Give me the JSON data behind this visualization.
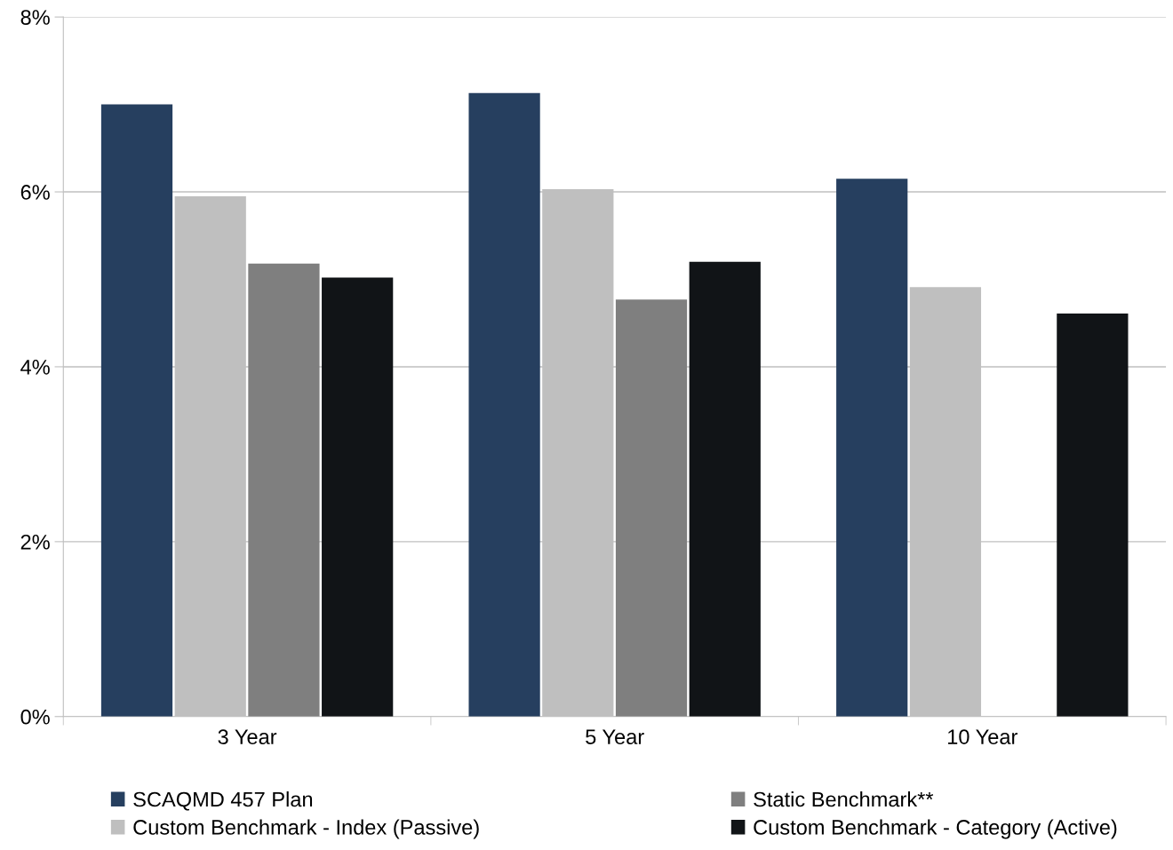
{
  "chart_data": {
    "type": "bar",
    "categories": [
      "3 Year",
      "5 Year",
      "10 Year"
    ],
    "series": [
      {
        "name": "SCAQMD 457 Plan",
        "color": "#263f5f",
        "values": [
          7.0,
          7.13,
          6.15
        ]
      },
      {
        "name": "Custom Benchmark - Index (Passive)",
        "color": "#bfbfbf",
        "values": [
          5.95,
          6.03,
          4.91
        ]
      },
      {
        "name": "Static Benchmark**",
        "color": "#7f7f7f",
        "values": [
          5.18,
          4.77,
          null
        ]
      },
      {
        "name": "Custom Benchmark - Category (Active)",
        "color": "#111417",
        "values": [
          5.02,
          5.2,
          4.61
        ]
      }
    ],
    "ylim": [
      0,
      8
    ],
    "yticks": [
      {
        "value": 0,
        "label": "0%"
      },
      {
        "value": 2,
        "label": "2%"
      },
      {
        "value": 4,
        "label": "4%"
      },
      {
        "value": 6,
        "label": "6%"
      },
      {
        "value": 8,
        "label": "8%"
      }
    ],
    "grid": "y",
    "legend": "bottom"
  }
}
